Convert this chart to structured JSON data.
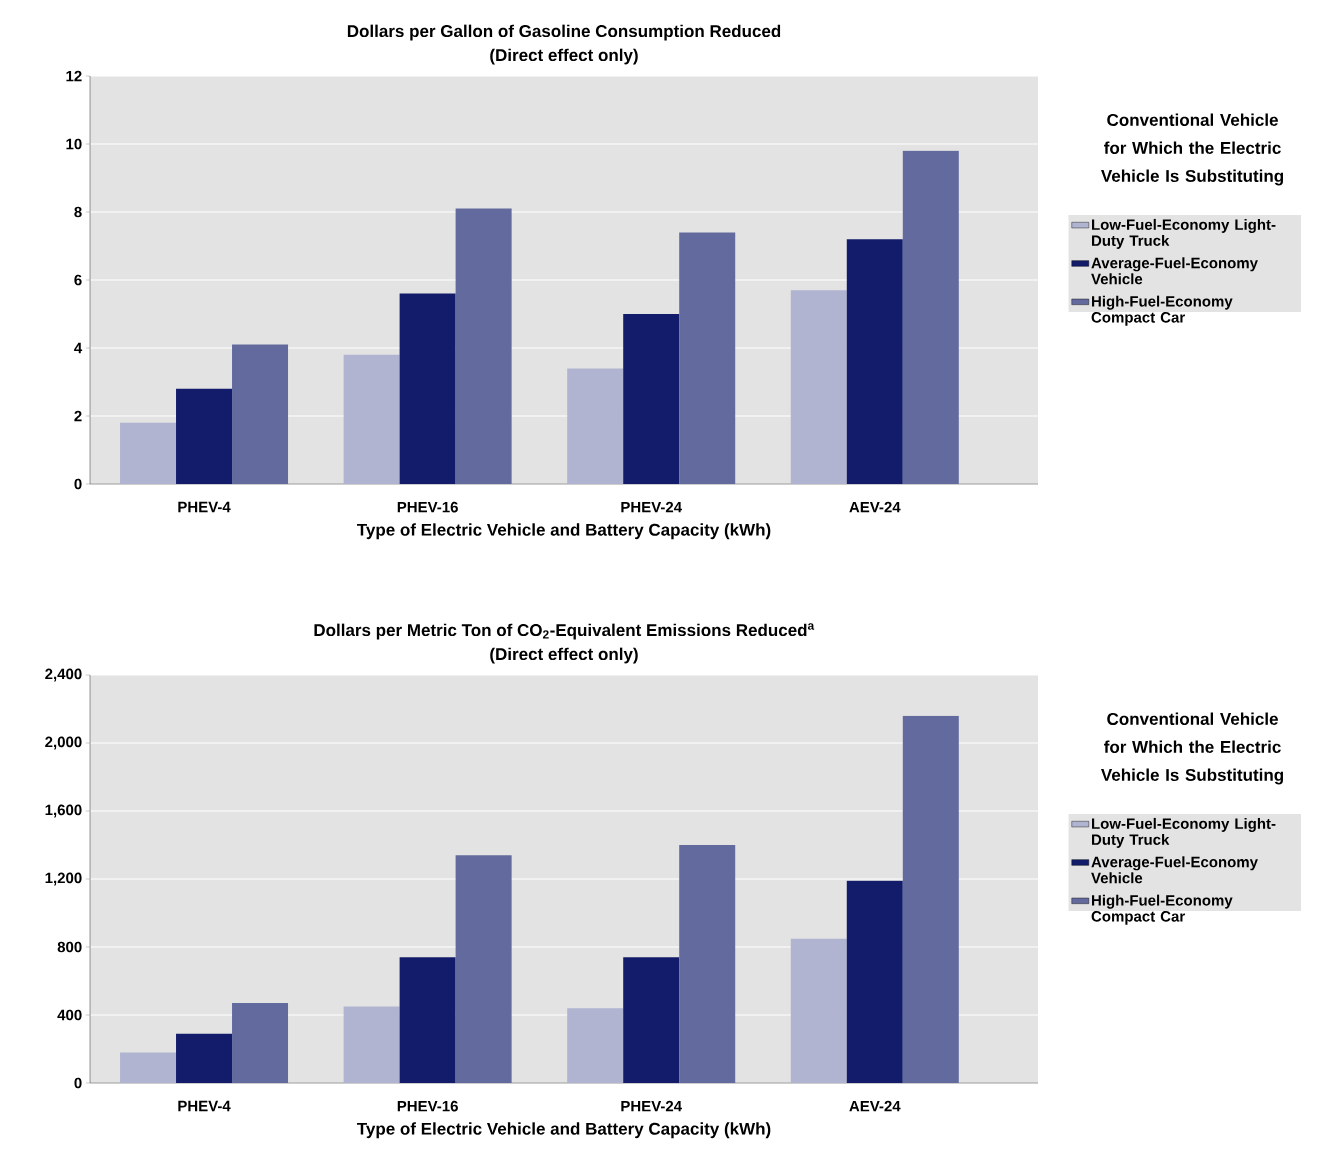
{
  "chart_data": [
    {
      "type": "bar",
      "title": "Dollars per Gallon of Gasoline Consumption Reduced",
      "subtitle": "(Direct effect only)",
      "xlabel": "Type of Electric Vehicle and Battery Capacity (kWh)",
      "legend_title": "Conventional Vehicle for Which the Electric Vehicle Is Substituting",
      "categories": [
        "PHEV-4",
        "PHEV-16",
        "PHEV-24",
        "AEV-24"
      ],
      "series": [
        {
          "name": "Low-Fuel-Economy Light-Duty Truck",
          "color": "#b0b4d0",
          "values": [
            1.8,
            3.8,
            3.4,
            5.7
          ]
        },
        {
          "name": "Average-Fuel-Economy Vehicle",
          "color": "#121c6a",
          "values": [
            2.8,
            5.6,
            5.0,
            7.2
          ]
        },
        {
          "name": "High-Fuel-Economy Compact Car",
          "color": "#636a9e",
          "values": [
            4.1,
            8.1,
            7.4,
            9.8
          ]
        }
      ],
      "ylim": [
        0,
        12
      ],
      "yticks": [
        0,
        2,
        4,
        6,
        8,
        10,
        12
      ],
      "grid": "y",
      "legend": "right"
    },
    {
      "type": "bar",
      "title": "Dollars per Metric Ton of CO$_{2}$-Equivalent Emissions Reduced$^{a}$",
      "subtitle": "(Direct effect only)",
      "xlabel": "Type of Electric Vehicle and Battery Capacity (kWh)",
      "legend_title": "Conventional Vehicle for Which the Electric Vehicle Is Substituting",
      "categories": [
        "PHEV-4",
        "PHEV-16",
        "PHEV-24",
        "AEV-24"
      ],
      "series": [
        {
          "name": "Low-Fuel-Economy Light-Duty Truck",
          "color": "#b0b4d0",
          "values": [
            180,
            450,
            440,
            850
          ]
        },
        {
          "name": "Average-Fuel-Economy Vehicle",
          "color": "#121c6a",
          "values": [
            290,
            740,
            740,
            1190
          ]
        },
        {
          "name": "High-Fuel-Economy Compact Car",
          "color": "#636a9e",
          "values": [
            470,
            1340,
            1400,
            2160
          ]
        }
      ],
      "ylim": [
        0,
        2400
      ],
      "yticks": [
        0,
        {
          "value": 400,
          "label": "400"
        },
        {
          "value": 800,
          "label": "800"
        },
        {
          "value": 1200,
          "label": "1,200"
        },
        {
          "value": 1600,
          "label": "1,600"
        },
        {
          "value": 2000,
          "label": "2,000"
        },
        {
          "value": 2400,
          "label": "2,400"
        }
      ],
      "grid": "y",
      "legend": "right"
    }
  ]
}
